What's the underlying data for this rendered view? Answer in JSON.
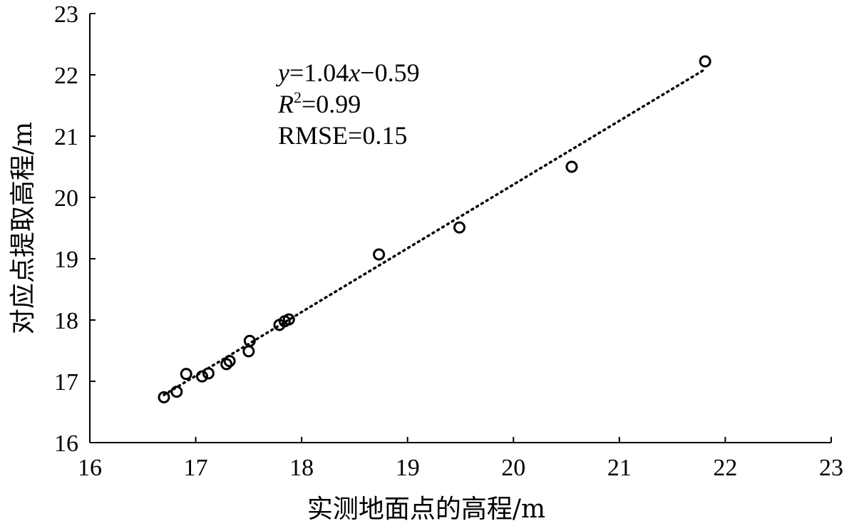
{
  "chart_data": {
    "type": "scatter",
    "xlabel": "实测地面点的高程/m",
    "ylabel": "对应点提取高程/m",
    "xlim": [
      16,
      23
    ],
    "ylim": [
      16,
      23
    ],
    "xticks": [
      "16",
      "17",
      "18",
      "19",
      "20",
      "21",
      "22",
      "23"
    ],
    "yticks": [
      "16",
      "17",
      "18",
      "19",
      "20",
      "21",
      "22",
      "23"
    ],
    "grid": false,
    "marker": "open-circle",
    "color": "#000000",
    "points": [
      {
        "x": 16.7,
        "y": 16.74
      },
      {
        "x": 16.82,
        "y": 16.83
      },
      {
        "x": 16.91,
        "y": 17.12
      },
      {
        "x": 17.06,
        "y": 17.08
      },
      {
        "x": 17.12,
        "y": 17.13
      },
      {
        "x": 17.29,
        "y": 17.28
      },
      {
        "x": 17.32,
        "y": 17.33
      },
      {
        "x": 17.5,
        "y": 17.49
      },
      {
        "x": 17.51,
        "y": 17.66
      },
      {
        "x": 17.79,
        "y": 17.92
      },
      {
        "x": 17.84,
        "y": 17.98
      },
      {
        "x": 17.88,
        "y": 18.01
      },
      {
        "x": 18.73,
        "y": 19.07
      },
      {
        "x": 19.49,
        "y": 19.51
      },
      {
        "x": 20.55,
        "y": 20.5
      },
      {
        "x": 21.81,
        "y": 22.22
      }
    ],
    "trendline": {
      "slope": 1.04,
      "intercept": -0.59,
      "x_range": [
        16.7,
        21.81
      ],
      "style": "dotted"
    },
    "annotations": {
      "equation": {
        "y_var": "y",
        "equals_coef": "=1.04",
        "x_var": "x",
        "rest": "−0.59"
      },
      "r2": {
        "var": "R",
        "sup": "2",
        "value": "=0.99"
      },
      "rmse": "RMSE=0.15"
    }
  }
}
